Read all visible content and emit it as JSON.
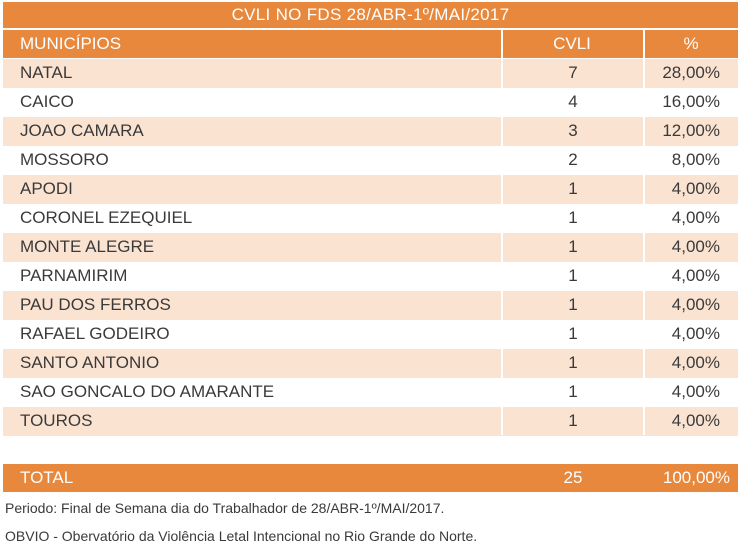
{
  "title": "CVLI NO FDS 28/ABR-1º/MAI/2017",
  "headers": {
    "municipio": "MUNICÍPIOS",
    "cvli": "CVLI",
    "pct": "%"
  },
  "rows": [
    {
      "municipio": "NATAL",
      "cvli": "7",
      "pct": "28,00%"
    },
    {
      "municipio": "CAICO",
      "cvli": "4",
      "pct": "16,00%"
    },
    {
      "municipio": "JOAO CAMARA",
      "cvli": "3",
      "pct": "12,00%"
    },
    {
      "municipio": "MOSSORO",
      "cvli": "2",
      "pct": "8,00%"
    },
    {
      "municipio": "APODI",
      "cvli": "1",
      "pct": "4,00%"
    },
    {
      "municipio": "CORONEL EZEQUIEL",
      "cvli": "1",
      "pct": "4,00%"
    },
    {
      "municipio": "MONTE ALEGRE",
      "cvli": "1",
      "pct": "4,00%"
    },
    {
      "municipio": "PARNAMIRIM",
      "cvli": "1",
      "pct": "4,00%"
    },
    {
      "municipio": "PAU DOS FERROS",
      "cvli": "1",
      "pct": "4,00%"
    },
    {
      "municipio": "RAFAEL GODEIRO",
      "cvli": "1",
      "pct": "4,00%"
    },
    {
      "municipio": "SANTO ANTONIO",
      "cvli": "1",
      "pct": "4,00%"
    },
    {
      "municipio": "SAO GONCALO DO AMARANTE",
      "cvli": "1",
      "pct": "4,00%"
    },
    {
      "municipio": "TOUROS",
      "cvli": "1",
      "pct": "4,00%"
    },
    {
      "municipio": "",
      "cvli": "",
      "pct": ""
    }
  ],
  "total": {
    "label": "TOTAL",
    "cvli": "25",
    "pct": "100,00%"
  },
  "footnotes": {
    "periodo": "Periodo: Final de Semana dia do Trabalhador de 28/ABR-1º/MAI/2017.",
    "fonte": "OBVIO - Obervatório da Violência Letal Intencional no Rio Grande do Norte."
  },
  "colors": {
    "accent": "#e8883c",
    "stripe": "#fbe3d2"
  }
}
